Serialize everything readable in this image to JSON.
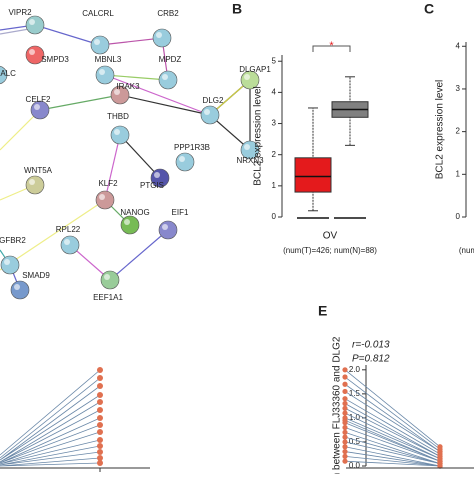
{
  "network": {
    "nodes": [
      {
        "label": "VIPR2"
      },
      {
        "label": "CALCRL"
      },
      {
        "label": "CRB2"
      },
      {
        "label": "SMPD3"
      },
      {
        "label": "GALC"
      },
      {
        "label": "MBNL3"
      },
      {
        "label": "MPDZ"
      },
      {
        "label": "DLGAP1"
      },
      {
        "label": "IRAK3"
      },
      {
        "label": "CELF2"
      },
      {
        "label": "DLG2"
      },
      {
        "label": "THBD"
      },
      {
        "label": "NRXN3"
      },
      {
        "label": "PPP1R3B"
      },
      {
        "label": "PTGIS"
      },
      {
        "label": "WNT5A"
      },
      {
        "label": "KLF2"
      },
      {
        "label": "NANOG"
      },
      {
        "label": "EIF1"
      },
      {
        "label": "RPL22"
      },
      {
        "label": "TGFBR2"
      },
      {
        "label": "SMAD9"
      },
      {
        "label": "EEF1A1"
      }
    ]
  },
  "chart_data": [
    {
      "type": "box",
      "panel": "B",
      "ylabel": "BCL2 expression level",
      "categories": [
        "OV"
      ],
      "xlabel": "(num(T)=426; num(N)=88)",
      "annotation": "*",
      "boxes": [
        {
          "color": "#e41a1c",
          "low": 0.2,
          "q1": 0.8,
          "median": 1.3,
          "q3": 1.9,
          "high": 3.5
        },
        {
          "color": "#808080",
          "low": 2.3,
          "q1": 3.2,
          "median": 3.45,
          "q3": 3.7,
          "high": 4.5
        }
      ],
      "ylim": [
        0,
        5.2
      ],
      "yticks": [
        0,
        1,
        2,
        3,
        4,
        5
      ]
    },
    {
      "type": "box",
      "panel": "C",
      "ylabel": "BCL2 expression level",
      "xlabel": "(num",
      "boxes": [],
      "ylim": [
        0,
        4.1
      ],
      "yticks": [
        0,
        1,
        2,
        3,
        4
      ]
    },
    {
      "type": "paired",
      "panel": "E",
      "ylabel": "ation between FLJ33360 and DLG2",
      "annotations": [
        "r=-0.013",
        "P=0.812"
      ],
      "series": [
        {
          "color": "#e07050",
          "values": [
            2.0,
            1.85,
            1.7,
            1.55,
            1.4,
            1.3,
            1.2,
            1.1,
            1.0,
            0.95,
            0.9,
            0.8,
            0.7,
            0.6,
            0.5,
            0.4,
            0.3,
            0.2,
            0.1
          ]
        },
        {
          "color": "#e07050",
          "values": [
            0.4,
            0.35,
            0.3,
            0.3,
            0.25,
            0.2,
            0.2,
            0.15,
            0.15,
            0.1,
            0.1,
            0.1,
            0.05,
            0.05,
            0.05,
            0.0,
            0.0,
            0.0,
            0.0
          ]
        }
      ],
      "line_color": "#6a88a8",
      "ylim": [
        0,
        2.1
      ],
      "yticks": [
        {
          "value": 0,
          "label": "0.0"
        },
        {
          "value": 0.5,
          "label": "0.5"
        },
        {
          "value": 1,
          "label": "1.0"
        },
        {
          "value": 1.5,
          "label": "1.5"
        },
        {
          "value": 2,
          "label": "2.0"
        }
      ]
    }
  ]
}
